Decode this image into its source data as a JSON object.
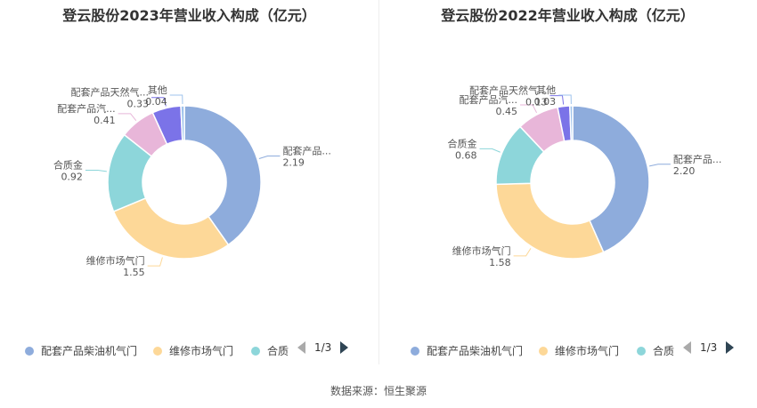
{
  "chart_data": [
    {
      "type": "pie",
      "title": "登云股份2023年营业收入构成（亿元）",
      "slices": [
        {
          "label": "配套产品...",
          "value": 2.19,
          "value_text": "2.19",
          "color": "#8eacdc"
        },
        {
          "label": "维修市场气门",
          "value": 1.55,
          "value_text": "1.55",
          "color": "#fdd898"
        },
        {
          "label": "合质金",
          "value": 0.92,
          "value_text": "0.92",
          "color": "#8dd6da"
        },
        {
          "label": "配套产品汽...",
          "value": 0.41,
          "value_text": "0.41",
          "color": "#e8b6d9"
        },
        {
          "label": "配套产品天然气...",
          "value": 0.33,
          "value_text": "0.33",
          "color": "#7b73e8"
        },
        {
          "label": "其他",
          "value": 0.04,
          "value_text": "0.04",
          "color": "#9fc3ec"
        }
      ],
      "legend": {
        "items": [
          {
            "label": "配套产品柴油机气门",
            "color": "#8eacdc"
          },
          {
            "label": "维修市场气门",
            "color": "#fdd898"
          },
          {
            "label": "合质",
            "color": "#8dd6da"
          }
        ],
        "page": "1/3",
        "placement": "bottom"
      }
    },
    {
      "type": "pie",
      "title": "登云股份2022年营业收入构成（亿元）",
      "slices": [
        {
          "label": "配套产品...",
          "value": 2.2,
          "value_text": "2.20",
          "color": "#8eacdc"
        },
        {
          "label": "维修市场气门",
          "value": 1.58,
          "value_text": "1.58",
          "color": "#fdd898"
        },
        {
          "label": "合质金",
          "value": 0.68,
          "value_text": "0.68",
          "color": "#8dd6da"
        },
        {
          "label": "配套产品汽...",
          "value": 0.45,
          "value_text": "0.45",
          "color": "#e8b6d9"
        },
        {
          "label": "配套产品天然气...",
          "value": 0.13,
          "value_text": "0.13",
          "color": "#7b73e8"
        },
        {
          "label": "其他",
          "value": 0.03,
          "value_text": "0.03",
          "color": "#9fc3ec"
        }
      ],
      "legend": {
        "items": [
          {
            "label": "配套产品柴油机气门",
            "color": "#8eacdc"
          },
          {
            "label": "维修市场气门",
            "color": "#fdd898"
          },
          {
            "label": "合质",
            "color": "#8dd6da"
          }
        ],
        "page": "1/3",
        "placement": "bottom"
      }
    }
  ],
  "footer": {
    "source": "数据来源：恒生聚源"
  }
}
